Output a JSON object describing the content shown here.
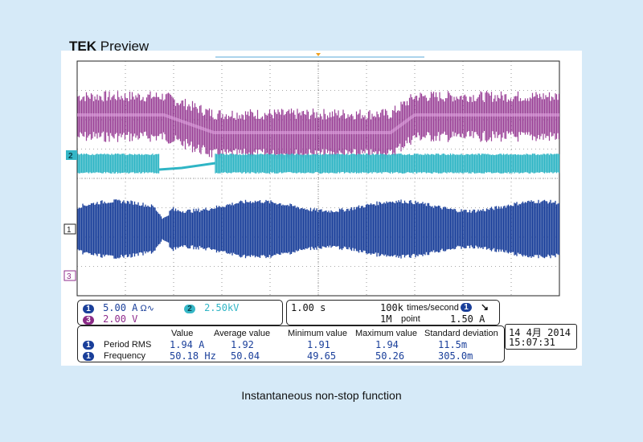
{
  "title": {
    "brand": "TEK",
    "word": "Preview"
  },
  "caption": "Instantaneous non-stop function",
  "channels": {
    "ch1": {
      "num": "1",
      "scale": "5.00 A",
      "unit_symbol": "Ω∿",
      "color": "#1a3f9a"
    },
    "ch2": {
      "num": "2",
      "scale": "2.50kV",
      "color": "#2fb5c5"
    },
    "ch3": {
      "num": "3",
      "scale": "2.00 V",
      "color": "#8f2c8c"
    }
  },
  "horizontal": {
    "timebase": "1.00 s",
    "sample_rate": "100k",
    "sample_rate_unit": "times/second",
    "record": "1M",
    "record_unit": "point",
    "trigger_source": "1",
    "trigger_slope": "↘",
    "trigger_level": "1.50 A"
  },
  "datetime": {
    "date": "14 4月  2014",
    "time": "15:07:31"
  },
  "measurements": {
    "headers": [
      "Value",
      "Average value",
      "Minimum value",
      "Maximum value",
      "Standard deviation"
    ],
    "rows": [
      {
        "ch": "1",
        "name": "Period RMS",
        "value": "1.94 A",
        "avg": "1.92",
        "min": "1.91",
        "max": "1.94",
        "std": "11.5m"
      },
      {
        "ch": "1",
        "name": "Frequency",
        "value": "50.18 Hz",
        "avg": "50.04",
        "min": "49.65",
        "max": "50.26",
        "std": "305.0m"
      }
    ]
  },
  "markers": {
    "ch1": "1",
    "ch2": "2",
    "ch3": "3"
  },
  "colors": {
    "background": "#d6eaf8",
    "grid": "#333333",
    "ch1": "#1a3f9a",
    "ch2": "#2fb5c5",
    "ch3": "#8f2c8c",
    "trigger": "#f0a020"
  }
}
